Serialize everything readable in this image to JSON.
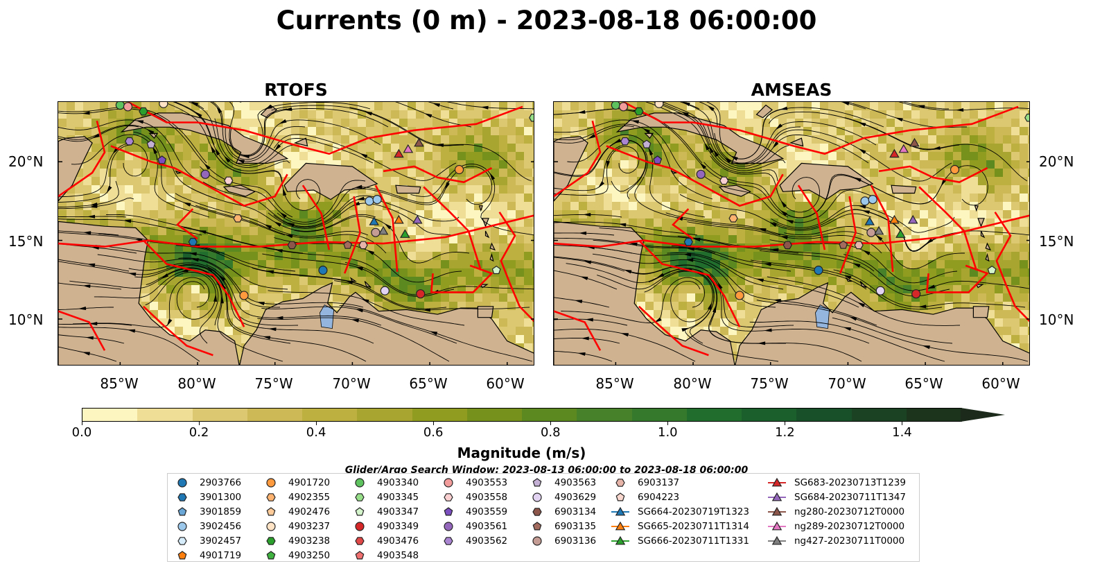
{
  "title": "Currents (0 m) - 2023-08-18 06:00:00",
  "panels": [
    {
      "title": "RTOFS"
    },
    {
      "title": "AMSEAS"
    }
  ],
  "lat_labels": [
    "20°N",
    "15°N",
    "10°N"
  ],
  "lon_labels": [
    "85°W",
    "80°W",
    "75°W",
    "70°W",
    "65°W",
    "60°W"
  ],
  "colorbar": {
    "label": "Magnitude (m/s)",
    "ticks": [
      "0.0",
      "0.2",
      "0.4",
      "0.6",
      "0.8",
      "1.0",
      "1.2",
      "1.4"
    ],
    "colors": [
      "#fdf6c0",
      "#efdf96",
      "#dcc870",
      "#cdb955",
      "#bdb040",
      "#a8a630",
      "#8f9c20",
      "#76911c",
      "#5c8a21",
      "#47812a",
      "#357a2c",
      "#216d2e",
      "#1b5f2d",
      "#185129",
      "#1b4222",
      "#1c331c"
    ]
  },
  "search_window": "Glider/Argo Search Window: 2023-08-13 06:00:00 to 2023-08-18 06:00:00",
  "legend": {
    "columns": [
      [
        {
          "label": "2903766",
          "marker": "circle",
          "color": "#1f77b4"
        },
        {
          "label": "3901300",
          "marker": "hexagon",
          "color": "#1f77b4"
        },
        {
          "label": "3901859",
          "marker": "pentagon",
          "color": "#6aa7d6"
        },
        {
          "label": "3902456",
          "marker": "circle",
          "color": "#9cc8ec"
        },
        {
          "label": "3902457",
          "marker": "hexagon",
          "color": "#d6ecfa"
        },
        {
          "label": "4901719",
          "marker": "pentagon",
          "color": "#ff7f0e"
        }
      ],
      [
        {
          "label": "4901720",
          "marker": "circle",
          "color": "#ff9b3e"
        },
        {
          "label": "4902355",
          "marker": "hexagon",
          "color": "#ffb370"
        },
        {
          "label": "4902476",
          "marker": "pentagon",
          "color": "#ffcc99"
        },
        {
          "label": "4903237",
          "marker": "circle",
          "color": "#ffe3c4"
        },
        {
          "label": "4903238",
          "marker": "hexagon",
          "color": "#2ca02c"
        },
        {
          "label": "4903250",
          "marker": "pentagon",
          "color": "#3fb23f"
        }
      ],
      [
        {
          "label": "4903340",
          "marker": "circle",
          "color": "#5ec25e"
        },
        {
          "label": "4903345",
          "marker": "hexagon",
          "color": "#98df8a"
        },
        {
          "label": "4903347",
          "marker": "pentagon",
          "color": "#d4f5cc"
        },
        {
          "label": "4903349",
          "marker": "circle",
          "color": "#d62728"
        },
        {
          "label": "4903476",
          "marker": "hexagon",
          "color": "#e04848"
        },
        {
          "label": "4903548",
          "marker": "pentagon",
          "color": "#f07070"
        }
      ],
      [
        {
          "label": "4903553",
          "marker": "circle",
          "color": "#f29c9c"
        },
        {
          "label": "4903558",
          "marker": "hexagon",
          "color": "#fbd0d0"
        },
        {
          "label": "4903559",
          "marker": "pentagon",
          "color": "#7b4fbf"
        },
        {
          "label": "4903561",
          "marker": "circle",
          "color": "#9467bd"
        },
        {
          "label": "4903562",
          "marker": "hexagon",
          "color": "#a985d2"
        }
      ],
      [
        {
          "label": "4903563",
          "marker": "pentagon",
          "color": "#c5b0d5"
        },
        {
          "label": "4903629",
          "marker": "circle",
          "color": "#e2d3f2"
        },
        {
          "label": "6903134",
          "marker": "hexagon",
          "color": "#8c564b"
        },
        {
          "label": "6903135",
          "marker": "pentagon",
          "color": "#a36a5e"
        },
        {
          "label": "6903136",
          "marker": "circle",
          "color": "#c49c94"
        }
      ],
      [
        {
          "label": "6903137",
          "marker": "hexagon",
          "color": "#e6b4a8"
        },
        {
          "label": "6904223",
          "marker": "pentagon",
          "color": "#fbd8cf"
        },
        {
          "label": "SG664-20230719T1323",
          "marker": "triangle",
          "color": "#1f77b4",
          "line": true
        },
        {
          "label": "SG665-20230711T1314",
          "marker": "triangle",
          "color": "#ff7f0e",
          "line": true
        },
        {
          "label": "SG666-20230711T1331",
          "marker": "triangle",
          "color": "#2ca02c",
          "line": true
        }
      ],
      [
        {
          "label": "SG683-20230713T1239",
          "marker": "triangle",
          "color": "#d62728",
          "line": true
        },
        {
          "label": "SG684-20230711T1347",
          "marker": "triangle",
          "color": "#9467bd",
          "line": true
        },
        {
          "label": "ng280-20230712T0000",
          "marker": "triangle",
          "color": "#8c564b",
          "line": true
        },
        {
          "label": "ng289-20230712T0000",
          "marker": "triangle",
          "color": "#e377c2",
          "line": true
        },
        {
          "label": "ng427-20230711T0000",
          "marker": "triangle",
          "color": "#7f7f7f",
          "line": true
        }
      ]
    ]
  },
  "map_colors": {
    "land": "#cfb28f",
    "ocean_outside": "#94b6de",
    "boundary": "#ff0000",
    "streamline": "#000000"
  },
  "markers": [
    {
      "label": "4903340",
      "lon": -85.0,
      "lat": 23.6,
      "marker": "circle",
      "color": "#5ec25e"
    },
    {
      "label": "4903553",
      "lon": -84.5,
      "lat": 23.5,
      "marker": "circle",
      "color": "#f29c9c"
    },
    {
      "label": "4903238",
      "lon": -83.5,
      "lat": 23.2,
      "marker": "hexagon",
      "color": "#2ca02c"
    },
    {
      "label": "4903237",
      "lon": -82.2,
      "lat": 23.7,
      "marker": "circle",
      "color": "#ffe3c4"
    },
    {
      "label": "4903562",
      "lon": -84.4,
      "lat": 21.3,
      "marker": "hexagon",
      "color": "#a985d2"
    },
    {
      "label": "4903563",
      "lon": -83.0,
      "lat": 21.1,
      "marker": "pentagon",
      "color": "#c5b0d5"
    },
    {
      "label": "4903559",
      "lon": -82.3,
      "lat": 20.1,
      "marker": "pentagon",
      "color": "#7b4fbf"
    },
    {
      "label": "4903561",
      "lon": -79.5,
      "lat": 19.2,
      "marker": "circle",
      "color": "#9467bd"
    },
    {
      "label": "4903558",
      "lon": -78.0,
      "lat": 18.8,
      "marker": "hexagon",
      "color": "#fbd0d0"
    },
    {
      "label": "4902355",
      "lon": -77.4,
      "lat": 16.4,
      "marker": "hexagon",
      "color": "#ffb370"
    },
    {
      "label": "3902456",
      "lon": -68.9,
      "lat": 17.5,
      "marker": "circle",
      "color": "#9cc8ec"
    },
    {
      "label": "3902456b",
      "lon": -68.4,
      "lat": 17.6,
      "marker": "circle",
      "color": "#9cc8ec"
    },
    {
      "label": "4901720",
      "lon": -63.1,
      "lat": 19.5,
      "marker": "circle",
      "color": "#ff9b3e"
    },
    {
      "label": "SG683",
      "lon": -67.0,
      "lat": 20.5,
      "marker": "triangle",
      "color": "#d62728"
    },
    {
      "label": "ng289",
      "lon": -66.4,
      "lat": 20.8,
      "marker": "triangle",
      "color": "#e377c2"
    },
    {
      "label": "ng280",
      "lon": -65.7,
      "lat": 21.2,
      "marker": "triangle",
      "color": "#8c564b"
    },
    {
      "label": "SG664",
      "lon": -68.6,
      "lat": 16.2,
      "marker": "triangle",
      "color": "#1f77b4"
    },
    {
      "label": "SG665",
      "lon": -67.0,
      "lat": 16.3,
      "marker": "triangle",
      "color": "#ff7f0e"
    },
    {
      "label": "SG684",
      "lon": -65.8,
      "lat": 16.3,
      "marker": "triangle",
      "color": "#9467bd"
    },
    {
      "label": "ng427",
      "lon": -68.0,
      "lat": 15.6,
      "marker": "triangle",
      "color": "#7f7f7f"
    },
    {
      "label": "6903136",
      "lon": -68.5,
      "lat": 15.5,
      "marker": "circle",
      "color": "#c49c94"
    },
    {
      "label": "SG666",
      "lon": -66.6,
      "lat": 15.4,
      "marker": "triangle",
      "color": "#2ca02c"
    },
    {
      "label": "6903137",
      "lon": -69.3,
      "lat": 14.7,
      "marker": "hexagon",
      "color": "#e6b4a8"
    },
    {
      "label": "6903134",
      "lon": -73.9,
      "lat": 14.7,
      "marker": "hexagon",
      "color": "#8c564b"
    },
    {
      "label": "6903135",
      "lon": -70.3,
      "lat": 14.7,
      "marker": "pentagon",
      "color": "#a36a5e"
    },
    {
      "label": "3901300",
      "lon": -80.3,
      "lat": 14.9,
      "marker": "hexagon",
      "color": "#1f77b4"
    },
    {
      "label": "2903766",
      "lon": -71.9,
      "lat": 13.1,
      "marker": "circle",
      "color": "#1f77b4"
    },
    {
      "label": "4903347",
      "lon": -60.7,
      "lat": 13.1,
      "marker": "pentagon",
      "color": "#d4f5cc"
    },
    {
      "label": "4901720b",
      "lon": -77.0,
      "lat": 11.5,
      "marker": "circle",
      "color": "#ff9b3e"
    },
    {
      "label": "4903629",
      "lon": -67.9,
      "lat": 11.8,
      "marker": "circle",
      "color": "#e2d3f2"
    },
    {
      "label": "4903349",
      "lon": -65.6,
      "lat": 11.6,
      "marker": "circle",
      "color": "#d62728"
    },
    {
      "label": "4903345",
      "lon": -58.3,
      "lat": 22.8,
      "marker": "hexagon",
      "color": "#98df8a"
    }
  ]
}
